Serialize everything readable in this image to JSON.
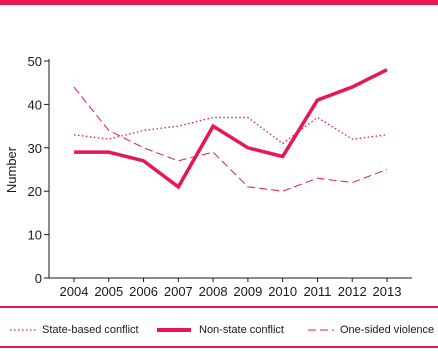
{
  "colors": {
    "accent": "#e8174f",
    "axis": "#1a1a1a"
  },
  "chart_data": {
    "type": "line",
    "title": "",
    "xlabel": "",
    "ylabel": "Number",
    "ylim": [
      0,
      50
    ],
    "yticks": [
      0,
      10,
      20,
      30,
      40,
      50
    ],
    "grid": false,
    "legend_position": "bottom",
    "x": [
      "2004",
      "2005",
      "2006",
      "2007",
      "2008",
      "2009",
      "2010",
      "2011",
      "2012",
      "2013"
    ],
    "series": [
      {
        "name": "State-based conflict",
        "style": "dotted",
        "values": [
          33,
          32,
          34,
          35,
          37,
          37,
          31,
          37,
          32,
          33
        ]
      },
      {
        "name": "Non-state conflict",
        "style": "solid-thick",
        "values": [
          29,
          29,
          27,
          21,
          35,
          30,
          28,
          41,
          44,
          48
        ]
      },
      {
        "name": "One-sided violence",
        "style": "dashed",
        "values": [
          44,
          34,
          30,
          27,
          29,
          21,
          20,
          23,
          22,
          25
        ]
      }
    ]
  }
}
